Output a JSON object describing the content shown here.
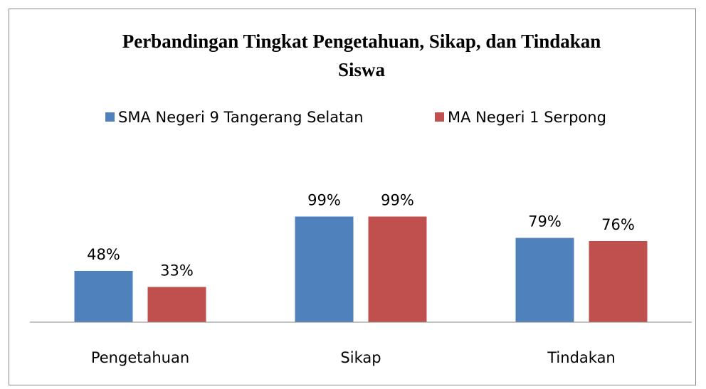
{
  "chart_data": {
    "type": "bar",
    "title": "Perbandingan Tingkat Pengetahuan, Sikap, dan Tindakan  Siswa",
    "categories": [
      "Pengetahuan",
      "Sikap",
      "Tindakan"
    ],
    "series": [
      {
        "name": "SMA Negeri 9 Tangerang Selatan",
        "color": "#4f81bd",
        "values": [
          48,
          99,
          79
        ],
        "value_labels": [
          "48%",
          "99%",
          "79%"
        ]
      },
      {
        "name": "MA Negeri 1 Serpong",
        "color": "#c0504d",
        "values": [
          33,
          99,
          76
        ],
        "value_labels": [
          "33%",
          "99%",
          "76%"
        ]
      }
    ],
    "ylim": [
      0,
      120
    ],
    "legend": "top"
  }
}
